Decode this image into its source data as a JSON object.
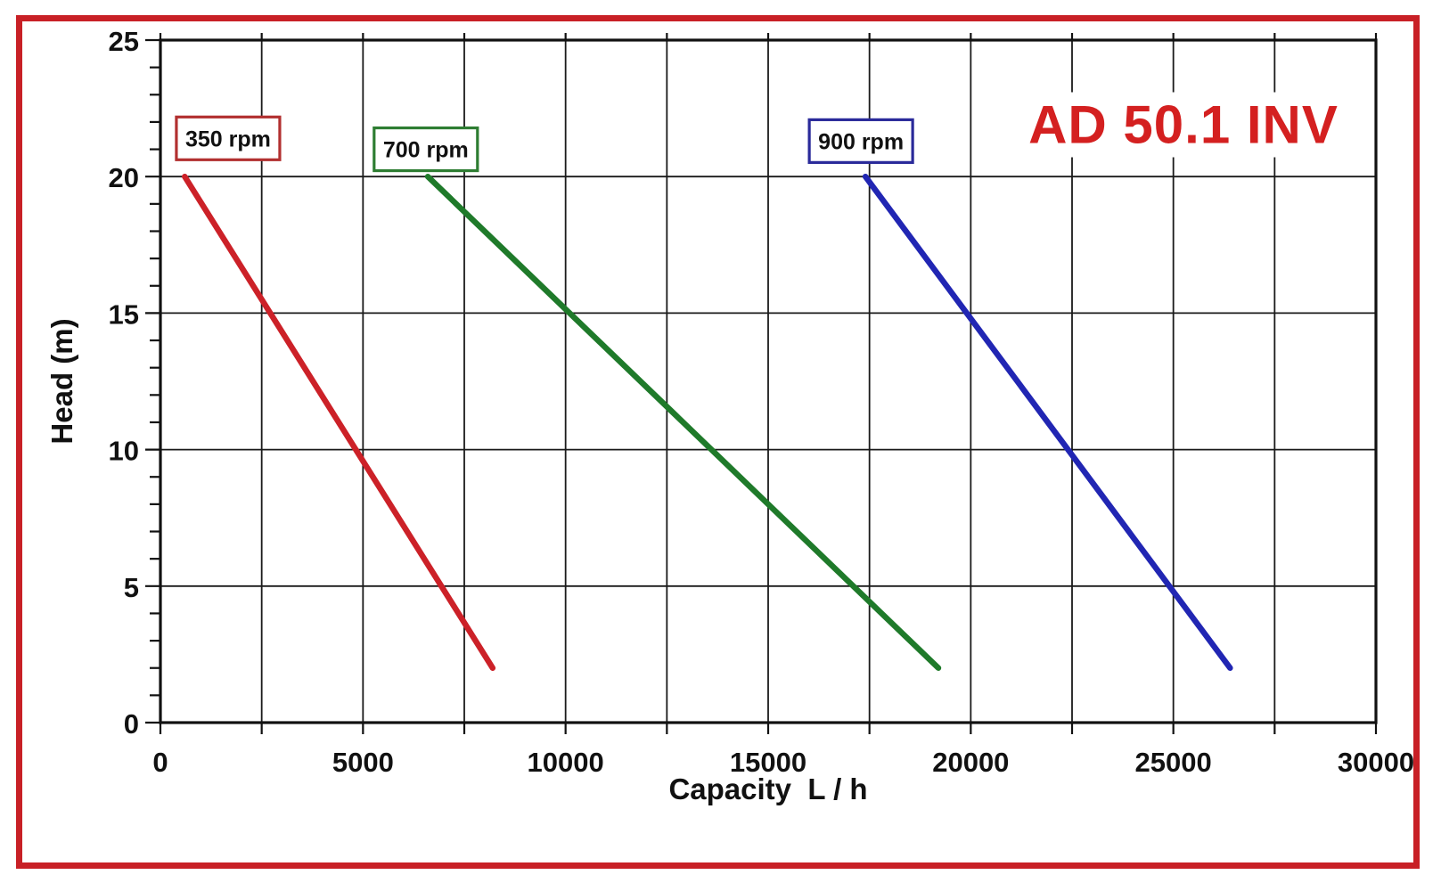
{
  "title": "AD 50.1 INV",
  "colors": {
    "frame": "#c82026",
    "title": "#d42020",
    "grid": "#1a1a1a",
    "axis": "#111111",
    "text": "#111111",
    "background": "#ffffff",
    "series_red": "#cc2128",
    "series_green": "#1f7a2a",
    "series_blue": "#2126b3"
  },
  "chart_data": {
    "type": "line",
    "title": "AD 50.1 INV",
    "xlabel": "Capacity  L / h",
    "ylabel": "Head (m)",
    "xlim": [
      0,
      30000
    ],
    "ylim": [
      0,
      25
    ],
    "x_label_step": 5000,
    "x_grid_step": 2500,
    "y_label_step": 5,
    "y_minor_tick_step": 1,
    "grid": true,
    "legend_position": "none",
    "x_tick_labels": [
      "0",
      "5000",
      "10000",
      "15000",
      "20000",
      "25000",
      "30000"
    ],
    "y_tick_labels": [
      "0",
      "5",
      "10",
      "15",
      "20",
      "25"
    ],
    "series": [
      {
        "name": "350 rpm",
        "color": "#cc2128",
        "points": [
          [
            600,
            20
          ],
          [
            8200,
            2
          ]
        ]
      },
      {
        "name": "700 rpm",
        "color": "#1f7a2a",
        "points": [
          [
            6600,
            20
          ],
          [
            19200,
            2
          ]
        ]
      },
      {
        "name": "900 rpm",
        "color": "#2126b3",
        "points": [
          [
            17400,
            20
          ],
          [
            26400,
            2
          ]
        ]
      }
    ],
    "annotations": [
      {
        "label": "350 rpm",
        "border_color": "#b23030",
        "capacity": 1670,
        "head": 21.4
      },
      {
        "label": "700 rpm",
        "border_color": "#2e7d32",
        "capacity": 6550,
        "head": 21.0
      },
      {
        "label": "900 rpm",
        "border_color": "#2a2a9a",
        "capacity": 17290,
        "head": 21.3
      }
    ]
  }
}
